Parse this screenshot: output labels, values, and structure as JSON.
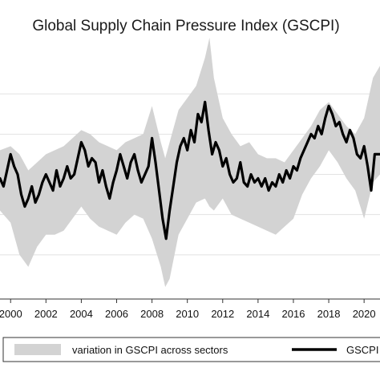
{
  "chart_data": {
    "type": "area",
    "title": "Global Supply Chain Pressure Index (GSCPI)",
    "xlabel": "",
    "ylabel": "",
    "x_ticks": [
      "2000",
      "2002",
      "2004",
      "2006",
      "2008",
      "2010",
      "2012",
      "2014",
      "2016",
      "2018",
      "2020"
    ],
    "xlim": [
      1999.4,
      2020.9
    ],
    "ylim": [
      -3.1,
      3.1
    ],
    "grid": "horizontal",
    "legend_placement": "bottom",
    "colors": {
      "band": "#d3d3d3",
      "line": "#000000"
    },
    "series": [
      {
        "name": "variation in GSCPI across sectors",
        "type": "band",
        "x": [
          1999.4,
          2000.0,
          2000.5,
          2001.0,
          2001.5,
          2002.0,
          2002.5,
          2003.0,
          2003.5,
          2004.0,
          2004.5,
          2005.0,
          2005.5,
          2006.0,
          2006.5,
          2007.0,
          2007.5,
          2008.0,
          2008.5,
          2008.75,
          2009.0,
          2009.5,
          2010.0,
          2010.5,
          2011.0,
          2011.25,
          2011.5,
          2012.0,
          2012.5,
          2013.0,
          2013.5,
          2014.0,
          2014.5,
          2015.0,
          2015.5,
          2016.0,
          2016.5,
          2017.0,
          2017.5,
          2018.0,
          2018.5,
          2019.0,
          2019.5,
          2020.0,
          2020.5,
          2020.9
        ],
        "upper": [
          0.6,
          0.7,
          0.5,
          0.1,
          0.3,
          0.5,
          0.6,
          0.7,
          0.9,
          1.1,
          1.0,
          0.8,
          0.7,
          0.6,
          0.8,
          0.9,
          1.0,
          1.7,
          0.8,
          0.4,
          0.8,
          1.6,
          1.9,
          2.2,
          2.9,
          3.4,
          2.4,
          1.4,
          1.0,
          0.7,
          0.8,
          0.5,
          0.4,
          0.4,
          0.3,
          0.6,
          0.9,
          1.2,
          1.6,
          1.8,
          1.5,
          1.2,
          1.0,
          1.4,
          2.4,
          2.7
        ],
        "lower": [
          -0.9,
          -1.2,
          -2.0,
          -2.3,
          -1.8,
          -1.5,
          -1.5,
          -1.4,
          -1.1,
          -0.8,
          -1.1,
          -1.3,
          -1.4,
          -1.5,
          -1.2,
          -1.0,
          -1.1,
          -1.6,
          -2.3,
          -2.8,
          -2.6,
          -1.5,
          -1.1,
          -0.7,
          -0.6,
          -0.8,
          -0.9,
          -0.6,
          -1.0,
          -1.1,
          -1.2,
          -1.3,
          -1.4,
          -1.5,
          -1.3,
          -1.1,
          -0.5,
          -0.1,
          0.2,
          0.6,
          0.3,
          -0.1,
          -0.4,
          -1.1,
          -0.2,
          0.0
        ]
      },
      {
        "name": "GSCPI",
        "type": "line",
        "x": [
          1999.4,
          1999.6,
          1999.8,
          2000.0,
          2000.2,
          2000.4,
          2000.6,
          2000.8,
          2001.0,
          2001.2,
          2001.4,
          2001.6,
          2001.8,
          2002.0,
          2002.2,
          2002.4,
          2002.6,
          2002.8,
          2003.0,
          2003.2,
          2003.4,
          2003.6,
          2003.8,
          2004.0,
          2004.2,
          2004.4,
          2004.6,
          2004.8,
          2005.0,
          2005.2,
          2005.4,
          2005.6,
          2005.8,
          2006.0,
          2006.2,
          2006.4,
          2006.6,
          2006.8,
          2007.0,
          2007.2,
          2007.4,
          2007.6,
          2007.8,
          2008.0,
          2008.2,
          2008.4,
          2008.6,
          2008.8,
          2009.0,
          2009.2,
          2009.4,
          2009.6,
          2009.8,
          2010.0,
          2010.2,
          2010.4,
          2010.6,
          2010.8,
          2011.0,
          2011.2,
          2011.4,
          2011.6,
          2011.8,
          2012.0,
          2012.2,
          2012.4,
          2012.6,
          2012.8,
          2013.0,
          2013.2,
          2013.4,
          2013.6,
          2013.8,
          2014.0,
          2014.2,
          2014.4,
          2014.6,
          2014.8,
          2015.0,
          2015.2,
          2015.4,
          2015.6,
          2015.8,
          2016.0,
          2016.2,
          2016.4,
          2016.6,
          2016.8,
          2017.0,
          2017.2,
          2017.4,
          2017.6,
          2017.8,
          2018.0,
          2018.2,
          2018.4,
          2018.6,
          2018.8,
          2019.0,
          2019.2,
          2019.4,
          2019.6,
          2019.8,
          2020.0,
          2020.2,
          2020.4,
          2020.6,
          2020.9
        ],
        "y": [
          -0.1,
          -0.3,
          0.1,
          0.5,
          0.2,
          0.0,
          -0.5,
          -0.8,
          -0.6,
          -0.3,
          -0.7,
          -0.5,
          -0.2,
          0.0,
          -0.2,
          -0.4,
          0.1,
          -0.3,
          -0.1,
          0.2,
          -0.1,
          0.0,
          0.4,
          0.8,
          0.6,
          0.2,
          0.4,
          0.3,
          -0.2,
          0.1,
          -0.3,
          -0.6,
          -0.2,
          0.1,
          0.5,
          0.2,
          -0.1,
          0.3,
          0.5,
          0.1,
          -0.2,
          0.0,
          0.2,
          0.9,
          0.3,
          -0.4,
          -1.1,
          -1.6,
          -0.9,
          -0.3,
          0.3,
          0.7,
          0.9,
          0.6,
          1.1,
          0.8,
          1.5,
          1.3,
          1.8,
          1.1,
          0.5,
          0.8,
          0.6,
          0.2,
          0.4,
          0.0,
          -0.2,
          -0.1,
          0.3,
          -0.2,
          -0.3,
          0.0,
          -0.2,
          -0.1,
          -0.3,
          -0.1,
          -0.4,
          -0.2,
          -0.3,
          0.0,
          -0.2,
          0.1,
          -0.1,
          0.2,
          0.1,
          0.4,
          0.6,
          0.8,
          1.0,
          0.9,
          1.2,
          1.0,
          1.4,
          1.7,
          1.5,
          1.2,
          1.3,
          1.0,
          0.8,
          1.1,
          0.9,
          0.5,
          0.4,
          0.7,
          0.2,
          -0.4,
          0.5,
          0.5
        ]
      }
    ]
  }
}
